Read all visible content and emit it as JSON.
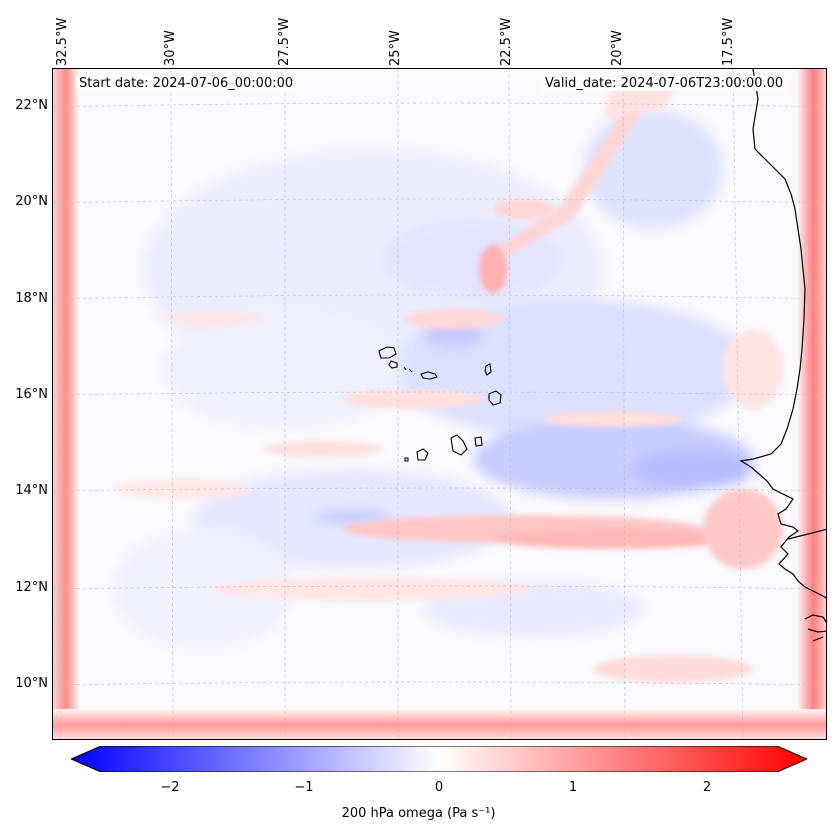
{
  "header": {
    "start_date": "Start date: 2024-07-06_00:00:00",
    "valid_date": "Valid_date: 2024-07-06T23:00:00.00"
  },
  "axes": {
    "longitude_labels": [
      "32.5°W",
      "30°W",
      "27.5°W",
      "25°W",
      "22.5°W",
      "20°W",
      "17.5°W"
    ],
    "latitude_labels": [
      "22°N",
      "20°N",
      "18°N",
      "16°N",
      "14°N",
      "12°N",
      "10°N"
    ]
  },
  "colorbar": {
    "label": "200 hPa omega (Pa s⁻¹)",
    "ticks": [
      "−2",
      "−1",
      "0",
      "1",
      "2"
    ],
    "min": -2.6,
    "max": 2.6,
    "negative_color": "#0000ff",
    "neutral_color": "#ffffff",
    "positive_color": "#ff0000"
  },
  "colors": {
    "coastline": "#000000",
    "gridline": "#bbbbbb"
  }
}
